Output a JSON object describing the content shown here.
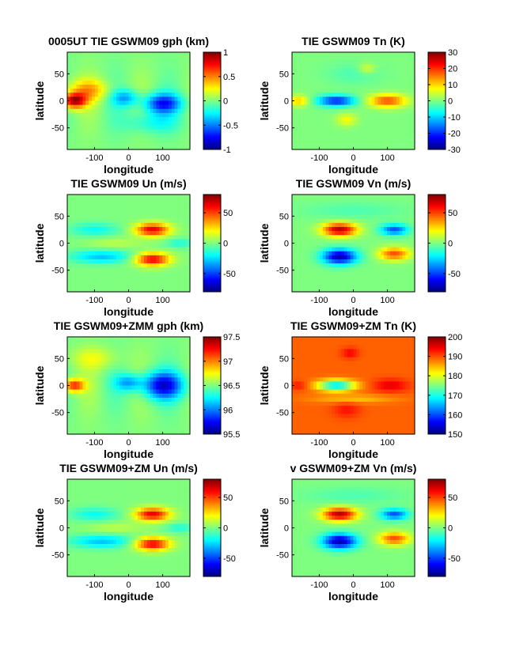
{
  "chart_data": [
    {
      "type": "heatmap",
      "title": "0005UT TIE GSWM09 gph (km)",
      "xlabel": "longitude",
      "ylabel": "latitude",
      "xlim": [
        -180,
        180
      ],
      "ylim": [
        -90,
        90
      ],
      "xticks": [
        "-100",
        "0",
        "100"
      ],
      "yticks": [
        "50",
        "0",
        "-50"
      ],
      "colorbar": {
        "min": -1,
        "max": 1,
        "ticks": [
          "1",
          "0.5",
          "0",
          "-0.5",
          "-1"
        ]
      },
      "field": "gph"
    },
    {
      "type": "heatmap",
      "title": "TIE GSWM09 Tn (K)",
      "xlabel": "longitude",
      "ylabel": "latitude",
      "xlim": [
        -180,
        180
      ],
      "ylim": [
        -90,
        90
      ],
      "xticks": [
        "-100",
        "0",
        "100"
      ],
      "yticks": [
        "50",
        "0",
        "-50"
      ],
      "colorbar": {
        "min": -30,
        "max": 30,
        "ticks": [
          "30",
          "20",
          "10",
          "0",
          "-10",
          "-20",
          "-30"
        ]
      },
      "field": "tn"
    },
    {
      "type": "heatmap",
      "title": "TIE GSWM09 Un (m/s)",
      "xlabel": "longitude",
      "ylabel": "latitude",
      "xlim": [
        -180,
        180
      ],
      "ylim": [
        -90,
        90
      ],
      "xticks": [
        "-100",
        "0",
        "100"
      ],
      "yticks": [
        "50",
        "0",
        "-50"
      ],
      "colorbar": {
        "min": -80,
        "max": 80,
        "ticks": [
          "50",
          "0",
          "-50"
        ]
      },
      "field": "un"
    },
    {
      "type": "heatmap",
      "title": "TIE GSWM09 Vn (m/s)",
      "xlabel": "longitude",
      "ylabel": "latitude",
      "xlim": [
        -180,
        180
      ],
      "ylim": [
        -90,
        90
      ],
      "xticks": [
        "-100",
        "0",
        "100"
      ],
      "yticks": [
        "50",
        "0",
        "-50"
      ],
      "colorbar": {
        "min": -80,
        "max": 80,
        "ticks": [
          "50",
          "0",
          "-50"
        ]
      },
      "field": "vn"
    },
    {
      "type": "heatmap",
      "title": "TIE GSWM09+ZMM gph (km)",
      "xlabel": "longitude",
      "ylabel": "latitude",
      "xlim": [
        -180,
        180
      ],
      "ylim": [
        -90,
        90
      ],
      "xticks": [
        "-100",
        "0",
        "100"
      ],
      "yticks": [
        "50",
        "0",
        "-50"
      ],
      "colorbar": {
        "min": 95.5,
        "max": 97.5,
        "ticks": [
          "97.5",
          "97",
          "96.5",
          "96",
          "95.5"
        ]
      },
      "field": "gph_zm"
    },
    {
      "type": "heatmap",
      "title": "TIE GSWM09+ZM Tn (K)",
      "xlabel": "longitude",
      "ylabel": "latitude",
      "xlim": [
        -180,
        180
      ],
      "ylim": [
        -90,
        90
      ],
      "xticks": [
        "-100",
        "0",
        "100"
      ],
      "yticks": [
        "50",
        "0",
        "-50"
      ],
      "colorbar": {
        "min": 150,
        "max": 200,
        "ticks": [
          "200",
          "190",
          "180",
          "170",
          "160",
          "150"
        ]
      },
      "field": "tn_zm"
    },
    {
      "type": "heatmap",
      "title": "TIE GSWM09+ZM Un (m/s)",
      "xlabel": "longitude",
      "ylabel": "latitude",
      "xlim": [
        -180,
        180
      ],
      "ylim": [
        -90,
        90
      ],
      "xticks": [
        "-100",
        "0",
        "100"
      ],
      "yticks": [
        "50",
        "0",
        "-50"
      ],
      "colorbar": {
        "min": -80,
        "max": 80,
        "ticks": [
          "50",
          "0",
          "-50"
        ]
      },
      "field": "un"
    },
    {
      "type": "heatmap",
      "title": "v GSWM09+ZM Vn (m/s)",
      "xlabel": "longitude",
      "ylabel": "latitude",
      "xlim": [
        -180,
        180
      ],
      "ylim": [
        -90,
        90
      ],
      "xticks": [
        "-100",
        "0",
        "100"
      ],
      "yticks": [
        "50",
        "0",
        "-50"
      ],
      "colorbar": {
        "min": -80,
        "max": 80,
        "ticks": [
          "50",
          "0",
          "-50"
        ]
      },
      "field": "vn"
    }
  ]
}
